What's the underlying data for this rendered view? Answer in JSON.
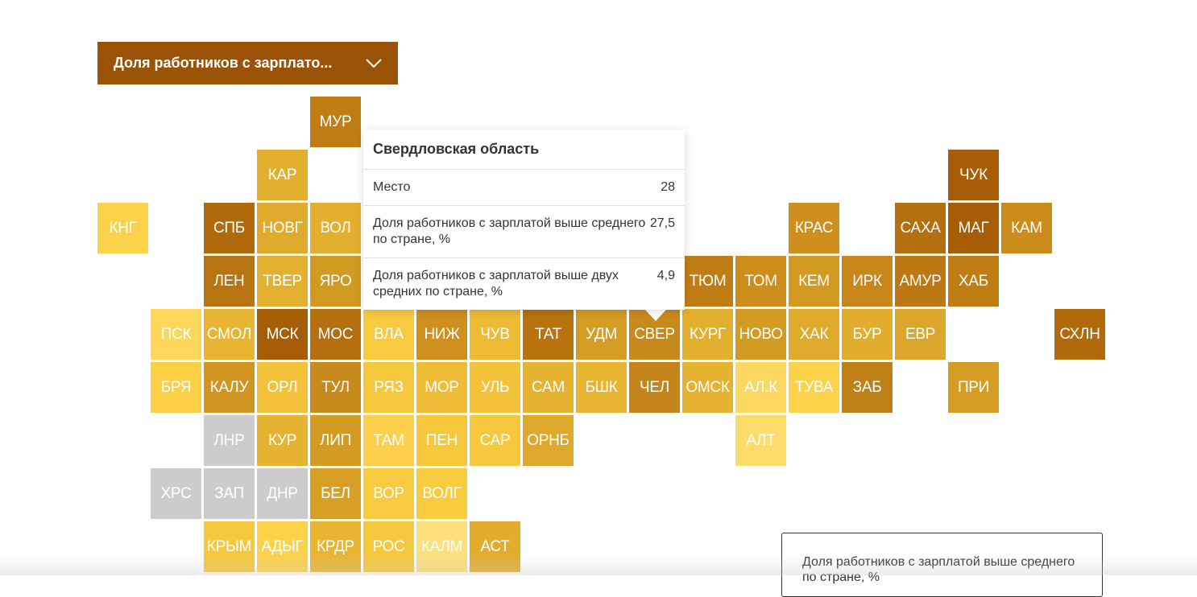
{
  "dropdown": {
    "label": "Доля работников с зарплато..."
  },
  "tiles": [
    [
      null,
      null,
      null,
      null,
      {
        "label": "МУР",
        "color": "#c07d14"
      },
      null,
      null,
      null,
      null,
      null,
      null,
      null,
      null,
      null,
      null,
      null,
      null,
      null,
      null
    ],
    [
      null,
      null,
      null,
      {
        "label": "КАР",
        "color": "#e2ae2d"
      },
      null,
      null,
      null,
      null,
      null,
      null,
      null,
      null,
      null,
      null,
      null,
      null,
      {
        "label": "ЧУК",
        "color": "#a65d06"
      },
      null,
      null
    ],
    [
      {
        "label": "КНГ",
        "color": "#fcd24a"
      },
      null,
      {
        "label": "СПБ",
        "color": "#b06a0c"
      },
      {
        "label": "НОВГ",
        "color": "#e0ab2c"
      },
      {
        "label": "ВОЛ",
        "color": "#e3af2e"
      },
      null,
      null,
      null,
      null,
      null,
      null,
      null,
      null,
      {
        "label": "КРАС",
        "color": "#cf8f1c"
      },
      null,
      {
        "label": "САХА",
        "color": "#b4700f"
      },
      {
        "label": "МАГ",
        "color": "#a65d06"
      },
      {
        "label": "КАМ",
        "color": "#cc8c1a"
      },
      null
    ],
    [
      null,
      null,
      {
        "label": "ЛЕН",
        "color": "#b87410"
      },
      {
        "label": "ТВЕР",
        "color": "#e4b02f"
      },
      {
        "label": "ЯРО",
        "color": "#d39a22"
      },
      null,
      null,
      null,
      null,
      null,
      null,
      {
        "label": "ТЮМ",
        "color": "#c07d14"
      },
      {
        "label": "ТОМ",
        "color": "#cd8e1c"
      },
      {
        "label": "КЕМ",
        "color": "#d39a22"
      },
      {
        "label": "ИРК",
        "color": "#c7871a"
      },
      {
        "label": "АМУР",
        "color": "#bd7813"
      },
      {
        "label": "ХАБ",
        "color": "#c07d14"
      },
      null,
      null
    ],
    [
      null,
      {
        "label": "ПСК",
        "color": "#fdd65a"
      },
      {
        "label": "СМОЛ",
        "color": "#e8b532"
      },
      {
        "label": "МСК",
        "color": "#a65d06"
      },
      {
        "label": "МОС",
        "color": "#b56f0f"
      },
      {
        "label": "ВЛА",
        "color": "#f8ca3f"
      },
      {
        "label": "НИЖ",
        "color": "#cf9020"
      },
      {
        "label": "ЧУВ",
        "color": "#edbb34"
      },
      {
        "label": "ТАТ",
        "color": "#b8730f"
      },
      {
        "label": "УДМ",
        "color": "#d69d24"
      },
      {
        "label": "СВЕР",
        "color": "#c88a1c"
      },
      {
        "label": "КУРГ",
        "color": "#e3af2e"
      },
      {
        "label": "НОВО",
        "color": "#d49b23"
      },
      {
        "label": "ХАК",
        "color": "#e0ab2c"
      },
      {
        "label": "БУР",
        "color": "#e2ad2d"
      },
      {
        "label": "ЕВР",
        "color": "#dca62a"
      },
      null,
      null,
      {
        "label": "СХЛН",
        "color": "#b06a0c"
      }
    ],
    [
      null,
      {
        "label": "БРЯ",
        "color": "#fccf45"
      },
      {
        "label": "КАЛУ",
        "color": "#d19522"
      },
      {
        "label": "ОРЛ",
        "color": "#f3c23a"
      },
      {
        "label": "ТУЛ",
        "color": "#c78a1c"
      },
      {
        "label": "РЯЗ",
        "color": "#f6c83d"
      },
      {
        "label": "МОР",
        "color": "#eebc36"
      },
      {
        "label": "УЛЬ",
        "color": "#f4c33a"
      },
      {
        "label": "САМ",
        "color": "#e6b330"
      },
      {
        "label": "БШК",
        "color": "#e8b532"
      },
      {
        "label": "ЧЕЛ",
        "color": "#c58419"
      },
      {
        "label": "ОМСК",
        "color": "#e6b330"
      },
      {
        "label": "АЛ.К",
        "color": "#fcd863"
      },
      {
        "label": "ТУВА",
        "color": "#fcd24a"
      },
      {
        "label": "ЗАБ",
        "color": "#c08018"
      },
      null,
      {
        "label": "ПРИ",
        "color": "#d69d24"
      },
      null,
      null
    ],
    [
      null,
      null,
      {
        "label": "ЛНР",
        "color": "#cccccc"
      },
      {
        "label": "КУР",
        "color": "#e6b330"
      },
      {
        "label": "ЛИП",
        "color": "#d49b23"
      },
      {
        "label": "ТАМ",
        "color": "#fccf4d"
      },
      {
        "label": "ПЕН",
        "color": "#f7c83c"
      },
      {
        "label": "САР",
        "color": "#f6c83d"
      },
      {
        "label": "ОРНБ",
        "color": "#dea82b"
      },
      null,
      null,
      null,
      {
        "label": "АЛТ",
        "color": "#fddc6c"
      },
      null,
      null,
      null,
      null,
      null,
      null
    ],
    [
      null,
      {
        "label": "ХРС",
        "color": "#cccccc"
      },
      {
        "label": "ЗАП",
        "color": "#cccccc"
      },
      {
        "label": "ДНР",
        "color": "#cccccc"
      },
      {
        "label": "БЕЛ",
        "color": "#d89f25"
      },
      {
        "label": "ВОР",
        "color": "#f8ca3f"
      },
      {
        "label": "ВОЛГ",
        "color": "#f9cc40"
      },
      null,
      null,
      null,
      null,
      null,
      null,
      null,
      null,
      null,
      null,
      null,
      null
    ],
    [
      null,
      null,
      {
        "label": "КРЫМ",
        "color": "#f6c83d"
      },
      {
        "label": "АДЫГ",
        "color": "#fcd24a"
      },
      {
        "label": "КРДР",
        "color": "#e8b532"
      },
      {
        "label": "РОС",
        "color": "#f6c83d"
      },
      {
        "label": "КАЛМ",
        "color": "#fde07a"
      },
      {
        "label": "АСТ",
        "color": "#e2ad2d"
      },
      null,
      null,
      null,
      null,
      null,
      null,
      null,
      null,
      null,
      null,
      null
    ]
  ],
  "tooltip": {
    "title": "Свердловская область",
    "rows": [
      {
        "label": "Место",
        "value": "28"
      },
      {
        "label": "Доля работников с зарплатой выше среднего по стране, %",
        "value": "27,5"
      },
      {
        "label": "Доля работников с зарплатой выше двух средних по стране, %",
        "value": "4,9"
      }
    ]
  },
  "legend": {
    "title": "Доля работников с зарплатой выше среднего по стране, %"
  }
}
